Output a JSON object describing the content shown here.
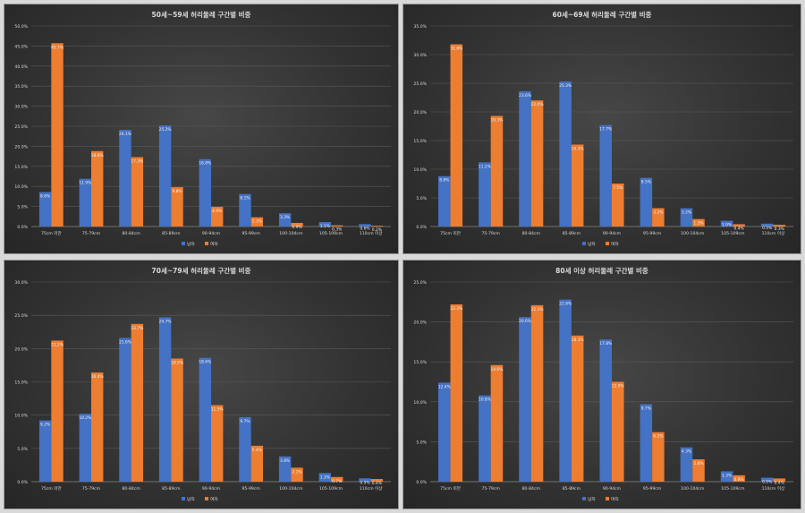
{
  "colors": {
    "male": "#4472C4",
    "female": "#ED7D31",
    "grid": "#5a5a5a",
    "text": "#d9d9d9"
  },
  "chart_data": [
    {
      "type": "bar",
      "title": "50세~59세 허리둘레 구간별 비중",
      "categories": [
        "75cm 미만",
        "75-79cm",
        "80-84cm",
        "85-89cm",
        "90-94cm",
        "95-99cm",
        "100-104cm",
        "105-109cm",
        "110cm 이상"
      ],
      "series": [
        {
          "name": "남자",
          "values": [
            8.6,
            11.9,
            24.1,
            25.2,
            16.8,
            8.1,
            3.3,
            1.1,
            0.6
          ],
          "labels": [
            "8.6%",
            "11.9%",
            "24.1%",
            "25.2%",
            "16.8%",
            "8.1%",
            "3.3%",
            "1.1%",
            "0.6%"
          ]
        },
        {
          "name": "여자",
          "values": [
            45.7,
            18.8,
            17.3,
            9.8,
            4.9,
            2.3,
            0.9,
            0.3,
            0.2
          ],
          "labels": [
            "45.7%",
            "18.8%",
            "17.3%",
            "9.8%",
            "4.9%",
            "2.3%",
            "0.9%",
            "0.3%",
            "0.2%"
          ]
        }
      ],
      "yticks": [
        "0.0%",
        "5.0%",
        "10.0%",
        "15.0%",
        "20.0%",
        "25.0%",
        "30.0%",
        "35.0%",
        "40.0%",
        "45.0%",
        "50.0%"
      ],
      "ylim": [
        0,
        50
      ]
    },
    {
      "type": "bar",
      "title": "60세~69세 허리둘레 구간별 비중",
      "categories": [
        "75cm 미만",
        "75-79cm",
        "80-84cm",
        "85-89cm",
        "90-94cm",
        "95-99cm",
        "100-104cm",
        "105-109cm",
        "110cm 이상"
      ],
      "series": [
        {
          "name": "남자",
          "values": [
            8.8,
            11.2,
            23.6,
            25.3,
            17.7,
            8.5,
            3.2,
            1.0,
            0.5
          ],
          "labels": [
            "8.8%",
            "11.2%",
            "23.6%",
            "25.3%",
            "17.7%",
            "8.5%",
            "3.2%",
            "1.0%",
            "0.5%"
          ]
        },
        {
          "name": "여자",
          "values": [
            31.8,
            19.3,
            22.0,
            14.3,
            7.5,
            3.2,
            1.3,
            0.4,
            0.3
          ],
          "labels": [
            "31.8%",
            "19.3%",
            "22.0%",
            "14.3%",
            "7.5%",
            "3.2%",
            "1.3%",
            "0.4%",
            "0.3%"
          ]
        }
      ],
      "yticks": [
        "0.0%",
        "5.0%",
        "10.0%",
        "15.0%",
        "20.0%",
        "25.0%",
        "30.0%",
        "35.0%"
      ],
      "ylim": [
        0,
        35
      ]
    },
    {
      "type": "bar",
      "title": "70세~79세 허리둘레 구간별 비중",
      "categories": [
        "75cm 미만",
        "75-79cm",
        "80-84cm",
        "85-89cm",
        "90-94cm",
        "95-99cm",
        "100-104cm",
        "105-109cm",
        "110cm 이상"
      ],
      "series": [
        {
          "name": "남자",
          "values": [
            9.2,
            10.2,
            21.6,
            24.7,
            18.6,
            9.7,
            3.8,
            1.3,
            0.5
          ],
          "labels": [
            "9.2%",
            "10.2%",
            "21.6%",
            "24.7%",
            "18.6%",
            "9.7%",
            "3.8%",
            "1.3%",
            "0.5%"
          ]
        },
        {
          "name": "여자",
          "values": [
            21.2,
            16.4,
            23.7,
            18.5,
            11.5,
            5.4,
            2.1,
            0.7,
            0.4
          ],
          "labels": [
            "21.2%",
            "16.4%",
            "23.7%",
            "18.5%",
            "11.5%",
            "5.4%",
            "2.1%",
            "0.7%",
            "0.4%"
          ]
        }
      ],
      "yticks": [
        "0.0%",
        "5.0%",
        "10.0%",
        "15.0%",
        "20.0%",
        "25.0%",
        "30.0%"
      ],
      "ylim": [
        0,
        30
      ]
    },
    {
      "type": "bar",
      "title": "80세 이상 허리둘레 구간별 비중",
      "categories": [
        "75cm 미만",
        "75-79cm",
        "80-84cm",
        "85-89cm",
        "90-94cm",
        "95-99cm",
        "100-104cm",
        "105-109cm",
        "110cm 이상"
      ],
      "series": [
        {
          "name": "남자",
          "values": [
            12.4,
            10.8,
            20.6,
            22.8,
            17.8,
            9.7,
            4.3,
            1.3,
            0.5
          ],
          "labels": [
            "12.4%",
            "10.8%",
            "20.6%",
            "22.8%",
            "17.8%",
            "9.7%",
            "4.3%",
            "1.3%",
            "0.5%"
          ]
        },
        {
          "name": "여자",
          "values": [
            22.2,
            14.6,
            22.1,
            18.3,
            12.5,
            6.2,
            2.8,
            0.8,
            0.4
          ],
          "labels": [
            "22.2%",
            "14.6%",
            "22.1%",
            "18.3%",
            "12.5%",
            "6.2%",
            "2.8%",
            "0.8%",
            "0.4%"
          ]
        }
      ],
      "yticks": [
        "0.0%",
        "5.0%",
        "10.0%",
        "15.0%",
        "20.0%",
        "25.0%"
      ],
      "ylim": [
        0,
        25
      ]
    }
  ]
}
